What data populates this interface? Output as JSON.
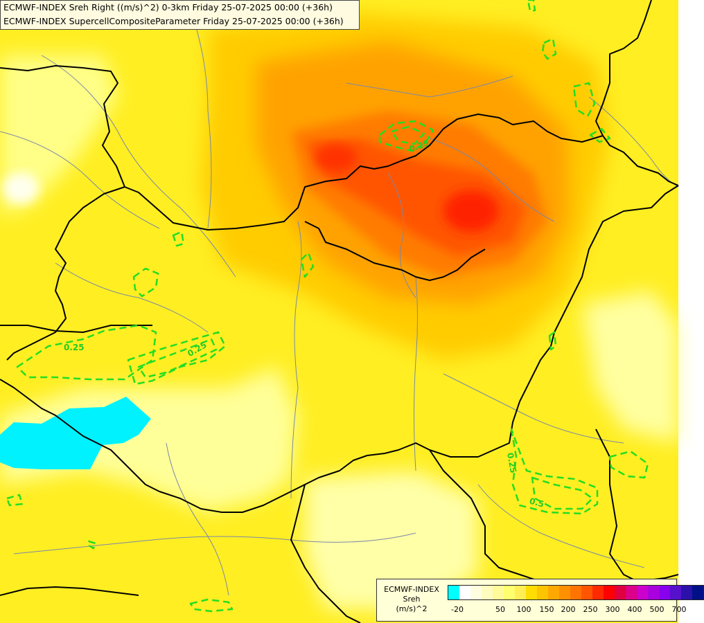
{
  "title": {
    "line1": "ECMWF-INDEX Sreh Right ((m/s)^2) 0-3km Friday 25-07-2025 00:00 (+36h)",
    "line2": "ECMWF-INDEX SupercellCompositeParameter Friday 25-07-2025 00:00 (+36h)"
  },
  "legend": {
    "line1": "ECMWF-INDEX",
    "line2": "Sreh",
    "line3": "(m/s)^2",
    "ticks": [
      "-20",
      "50",
      "100",
      "150",
      "200",
      "250",
      "300",
      "400",
      "500",
      "700"
    ],
    "colors": [
      "#00ffff",
      "#ffffff",
      "#fffde0",
      "#fffcc0",
      "#fffa9a",
      "#ffff70",
      "#ffee55",
      "#ffdd00",
      "#ffc400",
      "#ffa800",
      "#ff9000",
      "#ff7400",
      "#ff5500",
      "#ff2a00",
      "#ff0000",
      "#e00040",
      "#dd0088",
      "#cc00cc",
      "#aa00dd",
      "#8800ee",
      "#5511cc",
      "#2a11aa",
      "#001188"
    ]
  },
  "contour_labels": [
    "0.25",
    "0.25",
    "0.25",
    "0.25",
    "0.5"
  ],
  "colors": {
    "contour": "#22dd22",
    "border": "#000000",
    "river": "#7a88a8",
    "background": "#ffff33"
  }
}
